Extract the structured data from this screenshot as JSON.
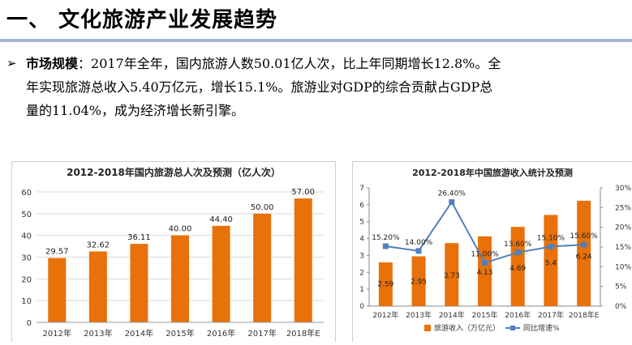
{
  "header": {
    "title": "一、 文化旅游产业发展趋势"
  },
  "summary": {
    "bullet": "➢",
    "label": "市场规模",
    "line1": "：2017年全年，国内旅游人数50.01亿人次，比上年同期增长12.8%。全",
    "line2": "年实现旅游总收入5.40万亿元，增长15.1%。旅游业对GDP的综合贡献占GDP总",
    "line3": "量的11.04%，成为经济增长新引擎。"
  },
  "chart_data": [
    {
      "type": "bar",
      "title": "2012-2018年国内旅游总人次及预测（亿人次）",
      "categories": [
        "2012年",
        "2013年",
        "2014年",
        "2015年",
        "2016年",
        "2017年",
        "2018年E"
      ],
      "values": [
        29.57,
        32.62,
        36.11,
        40.0,
        44.4,
        50.0,
        57.0
      ],
      "value_labels": [
        "29.57",
        "32.62",
        "36.11",
        "40.00",
        "44.40",
        "50.00",
        "57.00"
      ],
      "yticks": [
        "0",
        "10",
        "20",
        "30",
        "40",
        "50",
        "60"
      ],
      "ylim": [
        0,
        60
      ],
      "grid": true,
      "bar_color": "#e8710a"
    },
    {
      "type": "bar+line",
      "title": "2012-2018年中国旅游收入统计及预测",
      "categories": [
        "2012年",
        "2013年",
        "2014年",
        "2015年",
        "2016年",
        "2017年",
        "2018年E"
      ],
      "series": [
        {
          "name": "旅游收入（万亿元）",
          "type": "bar",
          "axis": "left",
          "values": [
            2.59,
            2.95,
            3.73,
            4.13,
            4.69,
            5.4,
            6.24
          ],
          "value_labels": [
            "2.59",
            "2.95",
            "3.73",
            "4.13",
            "4.69",
            "5.4",
            "6.24"
          ],
          "color": "#e8710a"
        },
        {
          "name": "同比增速%",
          "type": "line",
          "axis": "right",
          "values": [
            15.2,
            14.0,
            26.4,
            11.0,
            13.6,
            15.1,
            15.6
          ],
          "value_labels": [
            "15.20%",
            "14.00%",
            "26.40%",
            "11.00%",
            "13.60%",
            "15.10%",
            "15.60%"
          ],
          "color": "#4f81bd"
        }
      ],
      "yticks_left": [
        "0",
        "1",
        "2",
        "3",
        "4",
        "5",
        "6",
        "7"
      ],
      "ylim_left": [
        0,
        7
      ],
      "yticks_right": [
        "0%",
        "5%",
        "10%",
        "15%",
        "20%",
        "25%",
        "30%"
      ],
      "ylim_right": [
        0,
        30
      ],
      "legend_position": "bottom",
      "grid": false
    }
  ]
}
